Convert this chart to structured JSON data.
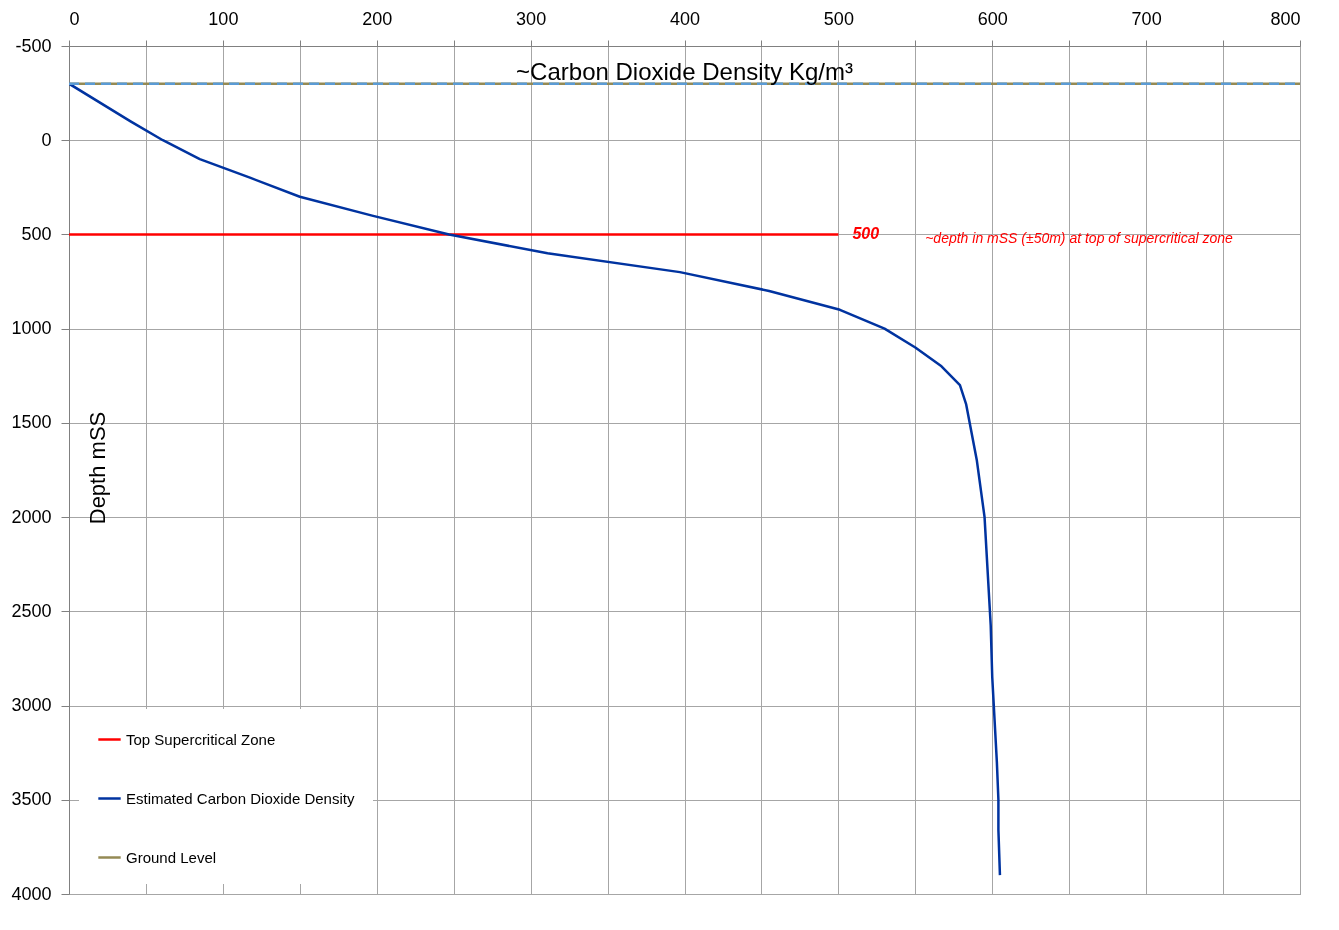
{
  "chart_data": {
    "type": "line",
    "title": "~Carbon Dioxide Density Kg/m³",
    "ylabel": "Depth mSS",
    "xlim": [
      0,
      800
    ],
    "xticks": [
      0,
      {
        "value": 50,
        "label": null
      },
      100,
      {
        "value": 150,
        "label": null
      },
      200,
      {
        "value": 250,
        "label": null
      },
      300,
      {
        "value": 350,
        "label": null
      },
      400,
      {
        "value": 450,
        "label": null
      },
      500,
      {
        "value": 550,
        "label": null
      },
      600,
      {
        "value": 650,
        "label": null
      },
      700,
      {
        "value": 750,
        "label": null
      },
      800
    ],
    "ylim": [
      4000,
      -500
    ],
    "yticks": [
      -500,
      0,
      500,
      1000,
      1500,
      2000,
      2500,
      3000,
      3500,
      4000
    ],
    "grid": true,
    "legend": "bottom left",
    "marker": "none",
    "series": [
      {
        "name": "Top Supercritical Zone",
        "color": "#ff0000",
        "x": [
          0,
          500
        ],
        "values": [
          500,
          500
        ]
      },
      {
        "name": "Estimated Carbon Dioxide Density",
        "color": "#0033a0",
        "x": [
          0,
          40,
          61,
          85,
          118,
          150,
          197,
          247,
          311,
          397,
          455,
          501,
          530,
          550,
          567,
          579,
          583,
          590,
          595,
          599,
          600,
          603,
          604,
          604,
          605
        ],
        "values": [
          -300,
          -100,
          0,
          100,
          200,
          300,
          400,
          500,
          600,
          700,
          800,
          900,
          1000,
          1100,
          1200,
          1300,
          1400,
          1700,
          2000,
          2575,
          2850,
          3300,
          3500,
          3660,
          3900
        ]
      },
      {
        "name": "Ground Level",
        "color": "#948a54",
        "x": [
          0,
          800
        ],
        "values": [
          -300,
          -300
        ]
      },
      {
        "color": "#5b9bd5",
        "line_style": "dashed",
        "x": [
          0,
          800
        ],
        "values": [
          -300,
          -300
        ]
      }
    ],
    "annotations": [
      {
        "text": "500",
        "x": 500,
        "y": 500
      },
      "~depth in mSS (±50m) at top of supercritical  zone"
    ]
  }
}
